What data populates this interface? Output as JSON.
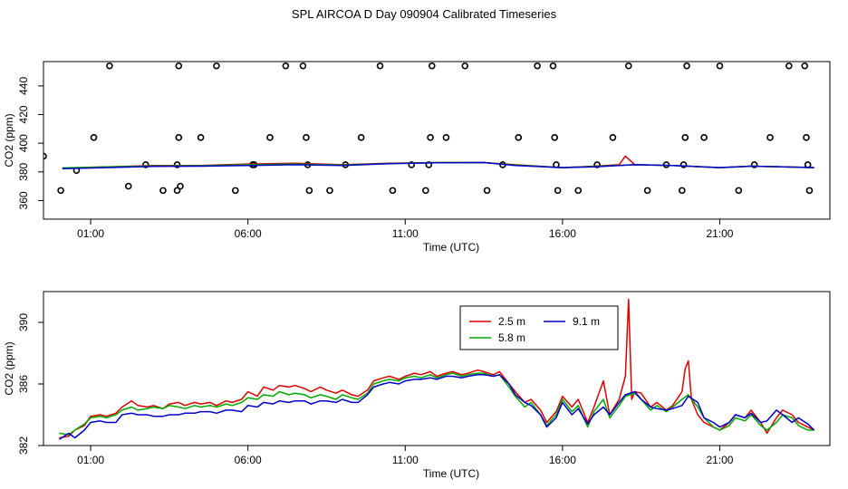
{
  "figure_title": "SPL AIRCOA D  Day 090904  Calibrated Timeseries",
  "colors": {
    "s25": "#dd0000",
    "s58": "#00aa00",
    "s91": "#0000cc",
    "frame": "#000000"
  },
  "chart_data": [
    {
      "type": "line",
      "title": "",
      "xlabel": "Time (UTC)",
      "ylabel": "CO2 (ppm)",
      "xlim": [
        -0.5,
        24.5
      ],
      "ylim": [
        347,
        457
      ],
      "x_ticks": [
        1,
        6,
        11,
        16,
        21
      ],
      "x_tick_labels": [
        "01:00",
        "06:00",
        "11:00",
        "16:00",
        "21:00"
      ],
      "y_ticks": [
        360,
        380,
        400,
        420,
        440
      ],
      "y_tick_labels": [
        "360",
        "380",
        "400",
        "420",
        "440"
      ],
      "legend": null,
      "series": [
        {
          "name": "2.5 m",
          "color_key": "s25",
          "x": [
            0.1,
            1.5,
            3,
            4.5,
            6,
            7.5,
            9,
            10.5,
            12,
            13.5,
            14.5,
            16,
            17,
            17.8,
            18,
            18.3,
            19.5,
            21,
            22,
            23,
            24
          ],
          "values": [
            382.5,
            383.5,
            384.5,
            384.5,
            385.5,
            386,
            385,
            386,
            386.5,
            386.5,
            385,
            383,
            384,
            385,
            391,
            385,
            384.5,
            383,
            384,
            383.5,
            383
          ]
        },
        {
          "name": "5.8 m",
          "color_key": "s58",
          "x": [
            0.1,
            1.5,
            3,
            4.5,
            6,
            7.5,
            9,
            10.5,
            12,
            13.5,
            14.5,
            16,
            17,
            18.3,
            19.5,
            21,
            22,
            23,
            24
          ],
          "values": [
            382.8,
            383.5,
            384.2,
            384.3,
            385,
            385.5,
            384.8,
            385.8,
            386.5,
            386.5,
            384.8,
            383,
            383.8,
            385,
            384.5,
            383,
            384,
            383.5,
            383
          ]
        },
        {
          "name": "9.1 m",
          "color_key": "s91",
          "x": [
            0.1,
            1.5,
            3,
            4.5,
            6,
            7.5,
            9,
            10.5,
            12,
            13.5,
            14.5,
            16,
            17,
            18.3,
            19.5,
            21,
            22,
            23,
            24
          ],
          "values": [
            382.2,
            383,
            383.8,
            384,
            384.5,
            385,
            384.5,
            385.7,
            386.3,
            386.5,
            384.5,
            383,
            383.5,
            385,
            384.5,
            383,
            384,
            383.5,
            383
          ]
        }
      ],
      "points": {
        "x": [
          -0.5,
          0.05,
          0.55,
          1.1,
          1.6,
          2.2,
          2.75,
          3.3,
          3.75,
          3.75,
          3.8,
          3.8,
          3.85,
          4.5,
          5.0,
          5.6,
          6.15,
          6.2,
          6.7,
          7.2,
          7.75,
          7.85,
          7.9,
          7.95,
          8.6,
          9.1,
          9.6,
          10.2,
          10.6,
          11.2,
          11.65,
          11.75,
          11.8,
          11.85,
          12.3,
          12.9,
          13.6,
          14.1,
          14.6,
          15.2,
          15.7,
          15.75,
          15.8,
          15.85,
          16.5,
          17.1,
          17.6,
          18.1,
          18.7,
          19.3,
          19.8,
          19.85,
          19.9,
          19.95,
          20.5,
          21.0,
          21.6,
          22.1,
          22.6,
          23.2,
          23.7,
          23.75,
          23.8,
          23.85
        ],
        "values": [
          391,
          367,
          381,
          404,
          454,
          370,
          385,
          367,
          367,
          385,
          404,
          454,
          370,
          404,
          454,
          367,
          385,
          385,
          404,
          454,
          454,
          404,
          385,
          367,
          367,
          385,
          404,
          454,
          367,
          385,
          367,
          385,
          404,
          454,
          404,
          454,
          367,
          385,
          404,
          454,
          454,
          404,
          385,
          367,
          367,
          385,
          404,
          454,
          367,
          385,
          367,
          385,
          404,
          454,
          404,
          454,
          367,
          385,
          404,
          454,
          454,
          404,
          385,
          367
        ]
      }
    },
    {
      "type": "line",
      "title": "",
      "xlabel": "Time (UTC)",
      "ylabel": "CO2 (ppm)",
      "xlim": [
        -0.5,
        24.5
      ],
      "ylim": [
        382,
        392
      ],
      "x_ticks": [
        1,
        6,
        11,
        16,
        21
      ],
      "x_tick_labels": [
        "01:00",
        "06:00",
        "11:00",
        "16:00",
        "21:00"
      ],
      "y_ticks": [
        382,
        386,
        390
      ],
      "y_tick_labels": [
        "382",
        "386",
        "390"
      ],
      "legend": {
        "placement": "top-right"
      },
      "series": [
        {
          "name": "2.5 m",
          "color_key": "s25",
          "x": [
            0.0,
            0.3,
            0.5,
            0.8,
            1.0,
            1.3,
            1.5,
            1.8,
            2.0,
            2.3,
            2.5,
            2.8,
            3.0,
            3.3,
            3.5,
            3.8,
            4.0,
            4.3,
            4.5,
            4.8,
            5.0,
            5.3,
            5.5,
            5.8,
            6.0,
            6.3,
            6.5,
            6.8,
            7.0,
            7.3,
            7.5,
            7.8,
            8.0,
            8.3,
            8.5,
            8.8,
            9.0,
            9.3,
            9.5,
            9.8,
            10.0,
            10.3,
            10.5,
            10.8,
            11.0,
            11.3,
            11.5,
            11.8,
            12.0,
            12.3,
            12.5,
            12.8,
            13.0,
            13.3,
            13.5,
            13.8,
            14.0,
            14.3,
            14.5,
            14.8,
            15.0,
            15.3,
            15.5,
            15.8,
            16.0,
            16.3,
            16.5,
            16.8,
            17.0,
            17.3,
            17.5,
            17.8,
            18.0,
            18.1,
            18.2,
            18.3,
            18.5,
            18.8,
            19.0,
            19.3,
            19.5,
            19.8,
            19.9,
            20.0,
            20.1,
            20.3,
            20.5,
            20.8,
            21.0,
            21.3,
            21.5,
            21.8,
            22.0,
            22.3,
            22.5,
            22.8,
            23.0,
            23.3,
            23.5,
            23.8,
            24.0
          ],
          "values": [
            382.5,
            382.6,
            383.0,
            383.3,
            383.9,
            384.0,
            383.9,
            384.1,
            384.5,
            384.9,
            384.6,
            384.5,
            384.6,
            384.4,
            384.7,
            384.8,
            384.6,
            384.8,
            384.7,
            384.8,
            384.6,
            384.9,
            384.8,
            385.0,
            385.5,
            385.2,
            385.8,
            385.6,
            385.9,
            385.8,
            385.9,
            385.7,
            385.5,
            385.8,
            385.6,
            385.4,
            385.6,
            385.3,
            385.2,
            385.6,
            386.2,
            386.4,
            386.5,
            386.3,
            386.5,
            386.7,
            386.6,
            386.8,
            386.5,
            386.7,
            386.8,
            386.6,
            386.7,
            386.9,
            386.8,
            386.6,
            386.8,
            386.0,
            385.5,
            384.8,
            385.0,
            384.3,
            383.5,
            384.2,
            385.2,
            384.5,
            385.0,
            383.5,
            384.5,
            386.2,
            384.0,
            385.0,
            386.5,
            391.5,
            385.0,
            385.5,
            385.4,
            384.5,
            384.8,
            384.3,
            384.6,
            385.5,
            387.0,
            387.5,
            385.0,
            384.0,
            383.5,
            383.2,
            383.0,
            383.5,
            384.0,
            383.8,
            384.3,
            383.5,
            382.8,
            383.8,
            384.3,
            384.0,
            383.5,
            383.2,
            383.0
          ]
        },
        {
          "name": "5.8 m",
          "color_key": "s58",
          "x": [
            0.0,
            0.3,
            0.5,
            0.8,
            1.0,
            1.3,
            1.5,
            1.8,
            2.0,
            2.3,
            2.5,
            2.8,
            3.0,
            3.3,
            3.5,
            3.8,
            4.0,
            4.3,
            4.5,
            4.8,
            5.0,
            5.3,
            5.5,
            5.8,
            6.0,
            6.3,
            6.5,
            6.8,
            7.0,
            7.3,
            7.5,
            7.8,
            8.0,
            8.3,
            8.5,
            8.8,
            9.0,
            9.3,
            9.5,
            9.8,
            10.0,
            10.3,
            10.5,
            10.8,
            11.0,
            11.3,
            11.5,
            11.8,
            12.0,
            12.3,
            12.5,
            12.8,
            13.0,
            13.3,
            13.5,
            13.8,
            14.0,
            14.3,
            14.5,
            14.8,
            15.0,
            15.3,
            15.5,
            15.8,
            16.0,
            16.3,
            16.5,
            16.8,
            17.0,
            17.3,
            17.5,
            17.8,
            18.0,
            18.3,
            18.5,
            18.8,
            19.0,
            19.3,
            19.5,
            19.8,
            20.0,
            20.3,
            20.5,
            20.8,
            21.0,
            21.3,
            21.5,
            21.8,
            22.0,
            22.3,
            22.5,
            22.8,
            23.0,
            23.3,
            23.5,
            23.8,
            24.0
          ],
          "values": [
            382.8,
            382.7,
            383.0,
            383.4,
            383.8,
            383.9,
            383.8,
            384.0,
            384.3,
            384.5,
            384.3,
            384.4,
            384.5,
            384.4,
            384.6,
            384.5,
            384.4,
            384.6,
            384.5,
            384.6,
            384.5,
            384.7,
            384.6,
            384.8,
            385.1,
            385.0,
            385.3,
            385.2,
            385.5,
            385.3,
            385.4,
            385.3,
            385.1,
            385.3,
            385.2,
            385.0,
            385.3,
            385.1,
            385.0,
            385.4,
            386.0,
            386.2,
            386.3,
            386.2,
            386.4,
            386.5,
            386.4,
            386.6,
            386.4,
            386.6,
            386.7,
            386.5,
            386.6,
            386.7,
            386.7,
            386.5,
            386.6,
            385.8,
            385.2,
            384.5,
            384.8,
            384.0,
            383.3,
            384.0,
            385.0,
            384.2,
            384.6,
            383.2,
            384.2,
            385.0,
            383.8,
            384.6,
            385.2,
            385.4,
            385.0,
            384.3,
            384.6,
            384.2,
            384.5,
            385.0,
            385.3,
            384.5,
            383.8,
            383.2,
            383.0,
            383.3,
            383.8,
            383.6,
            384.0,
            383.3,
            383.0,
            383.5,
            384.0,
            383.8,
            383.3,
            383.0,
            383.0
          ]
        },
        {
          "name": "9.1 m",
          "color_key": "s91",
          "x": [
            0.0,
            0.3,
            0.5,
            0.8,
            1.0,
            1.3,
            1.5,
            1.8,
            2.0,
            2.3,
            2.5,
            2.8,
            3.0,
            3.3,
            3.5,
            3.8,
            4.0,
            4.3,
            4.5,
            4.8,
            5.0,
            5.3,
            5.5,
            5.8,
            6.0,
            6.3,
            6.5,
            6.8,
            7.0,
            7.3,
            7.5,
            7.8,
            8.0,
            8.3,
            8.5,
            8.8,
            9.0,
            9.3,
            9.5,
            9.8,
            10.0,
            10.3,
            10.5,
            10.8,
            11.0,
            11.3,
            11.5,
            11.8,
            12.0,
            12.3,
            12.5,
            12.8,
            13.0,
            13.3,
            13.5,
            13.8,
            14.0,
            14.3,
            14.5,
            14.8,
            15.0,
            15.3,
            15.5,
            15.8,
            16.0,
            16.3,
            16.5,
            16.8,
            17.0,
            17.3,
            17.5,
            17.8,
            18.0,
            18.3,
            18.5,
            18.8,
            19.0,
            19.3,
            19.5,
            19.8,
            20.0,
            20.3,
            20.5,
            20.8,
            21.0,
            21.3,
            21.5,
            21.8,
            22.0,
            22.3,
            22.5,
            22.8,
            23.0,
            23.3,
            23.5,
            23.8,
            24.0
          ],
          "values": [
            382.4,
            382.8,
            382.5,
            383.0,
            383.5,
            383.6,
            383.5,
            383.5,
            384.0,
            384.1,
            384.0,
            384.0,
            383.9,
            383.9,
            384.0,
            384.0,
            384.1,
            384.1,
            384.2,
            384.2,
            384.1,
            384.3,
            384.3,
            384.2,
            384.6,
            384.5,
            384.8,
            384.7,
            384.9,
            384.8,
            384.9,
            384.9,
            384.7,
            384.9,
            384.9,
            384.8,
            385.0,
            384.8,
            384.8,
            385.3,
            385.8,
            386.0,
            386.1,
            386.0,
            386.2,
            386.3,
            386.3,
            386.4,
            386.3,
            386.5,
            386.5,
            386.4,
            386.5,
            386.6,
            386.6,
            386.5,
            386.6,
            386.0,
            385.3,
            384.8,
            384.6,
            384.0,
            383.2,
            383.8,
            384.8,
            384.0,
            384.4,
            383.4,
            384.0,
            384.5,
            384.0,
            384.8,
            385.3,
            385.5,
            385.0,
            384.5,
            384.4,
            384.3,
            384.4,
            384.6,
            385.2,
            384.8,
            383.8,
            383.5,
            383.2,
            383.5,
            384.0,
            383.8,
            384.1,
            383.5,
            383.6,
            384.3,
            384.0,
            383.5,
            383.8,
            383.4,
            383.0
          ]
        }
      ]
    }
  ]
}
